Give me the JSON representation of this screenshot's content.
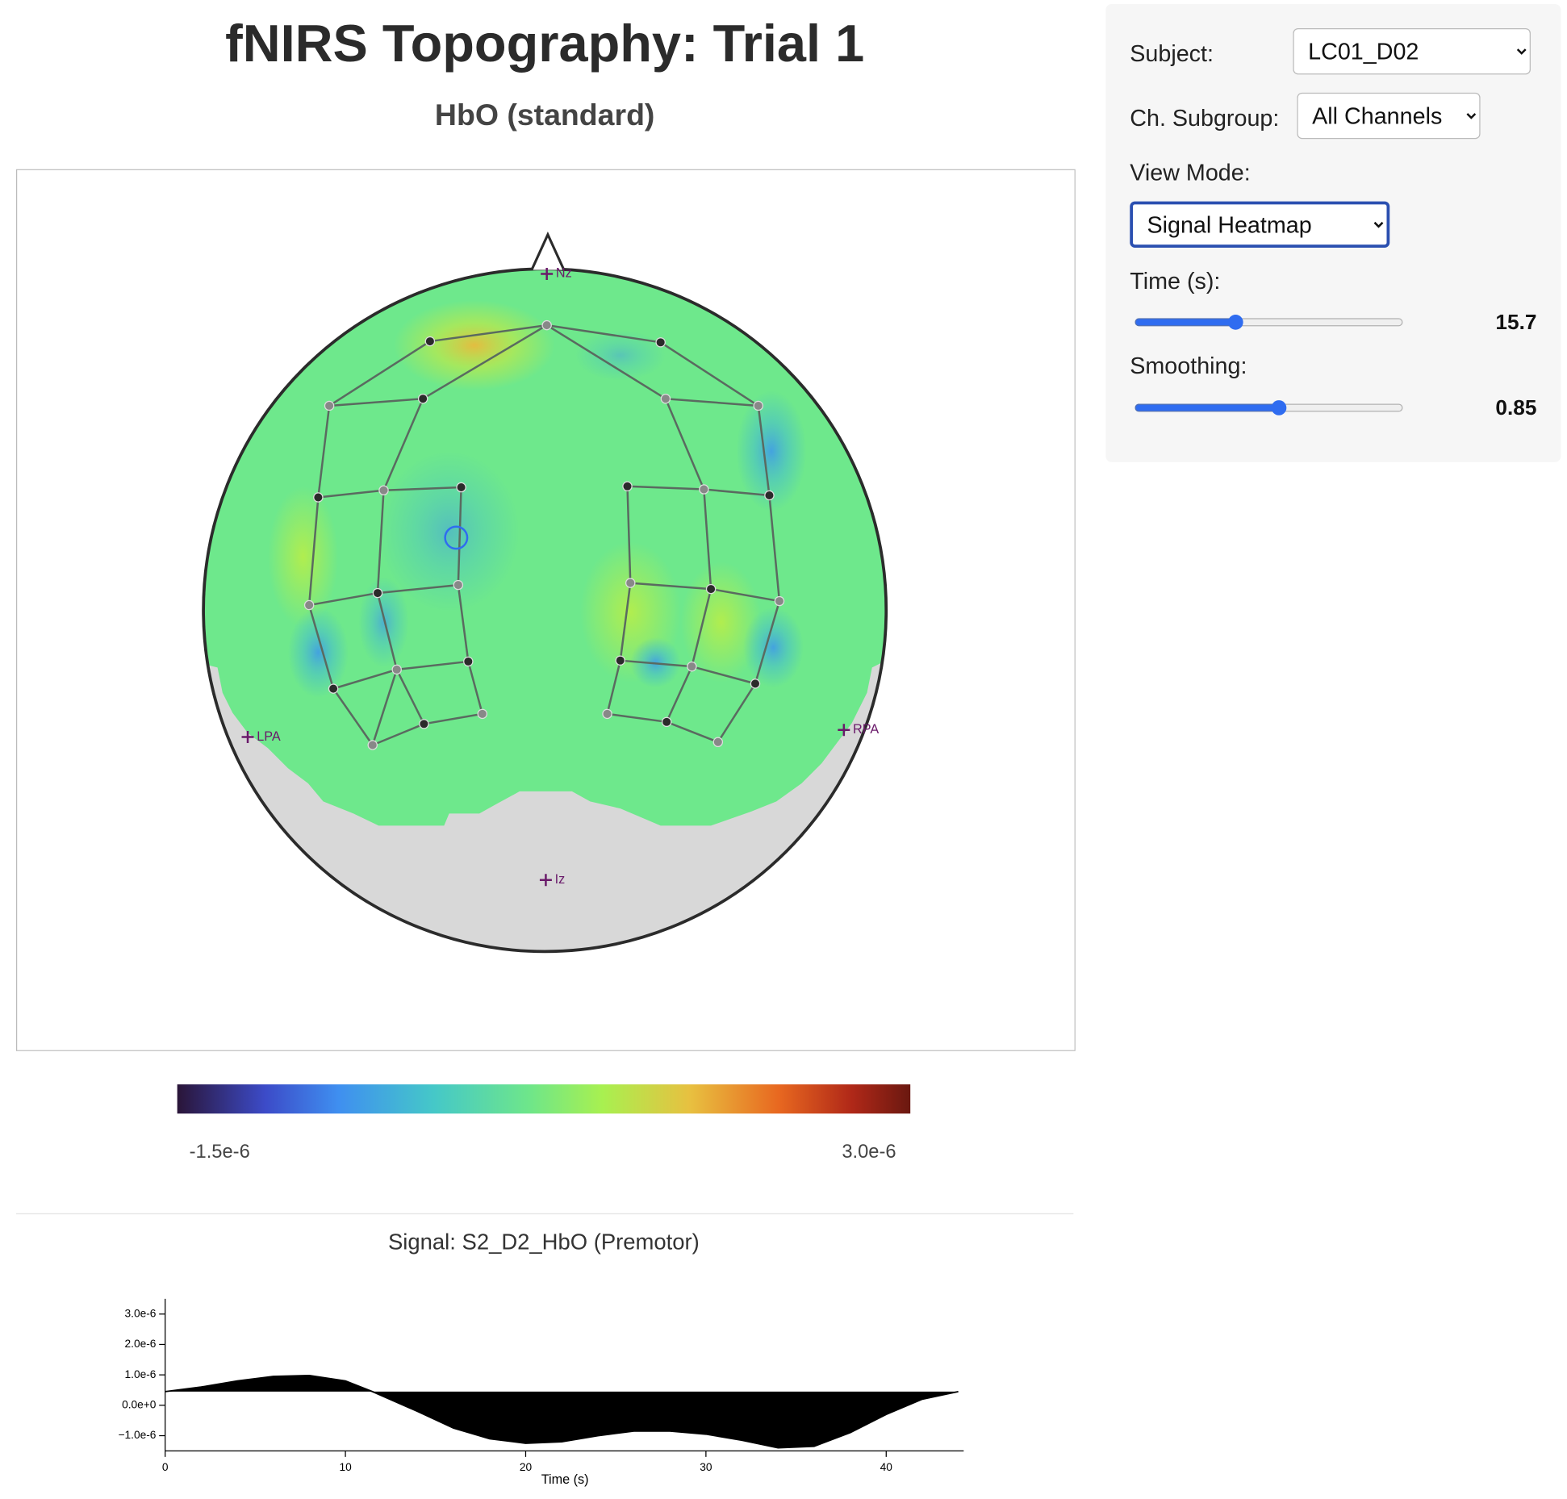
{
  "header": {
    "title": "fNIRS Topography: Trial 1",
    "subtitle": "HbO (standard)"
  },
  "controls": {
    "subject": {
      "label": "Subject:",
      "value": "LC01_D02"
    },
    "subgroup": {
      "label": "Ch. Subgroup:",
      "value": "All Channels"
    },
    "view_mode": {
      "label": "View Mode:",
      "value": "Signal Heatmap"
    },
    "time": {
      "label": "Time (s):",
      "value": 15.7
    },
    "smoothing": {
      "label": "Smoothing:",
      "value": 0.85
    }
  },
  "topography": {
    "landmarks": [
      "Nz",
      "LPA",
      "RPA",
      "Iz"
    ]
  },
  "colorbar": {
    "min": {
      "value": -1.5e-06,
      "label": "-1.5e-6"
    },
    "max": {
      "value": 3e-06,
      "label": "3.0e-6"
    }
  },
  "chart_data": {
    "type": "line",
    "title": "Signal: S2_D2_HbO (Premotor)",
    "x_label": "Time (s)",
    "color": "#000000",
    "x": [
      0,
      2,
      4,
      6,
      8,
      10,
      11.5,
      14,
      16,
      18,
      20,
      22,
      24,
      26,
      28,
      30,
      32,
      34,
      36,
      38,
      40,
      42,
      44
    ],
    "values": [
      4.5e-07,
      6e-07,
      8e-07,
      9.5e-07,
      9.8e-07,
      8e-07,
      4.5e-07,
      -2e-07,
      -7.5e-07,
      -1.1e-06,
      -1.25e-06,
      -1.2e-06,
      -1e-06,
      -8.5e-07,
      -8.5e-07,
      -9.5e-07,
      -1.15e-06,
      -1.4e-06,
      -1.35e-06,
      -9e-07,
      -3e-07,
      2e-07,
      4.5e-07
    ],
    "xlim": [
      0,
      44.3
    ],
    "ylim": [
      -1.5e-06,
      3.5e-06
    ],
    "xticks": [
      0,
      10,
      20,
      30,
      40
    ],
    "yticks": [
      {
        "value": -1e-06,
        "label": "−1.0e-6"
      },
      {
        "value": 0,
        "label": "0.0e+0"
      },
      {
        "value": 1e-06,
        "label": "1.0e-6"
      },
      {
        "value": 2e-06,
        "label": "2.0e-6"
      },
      {
        "value": 3e-06,
        "label": "3.0e-6"
      }
    ]
  }
}
